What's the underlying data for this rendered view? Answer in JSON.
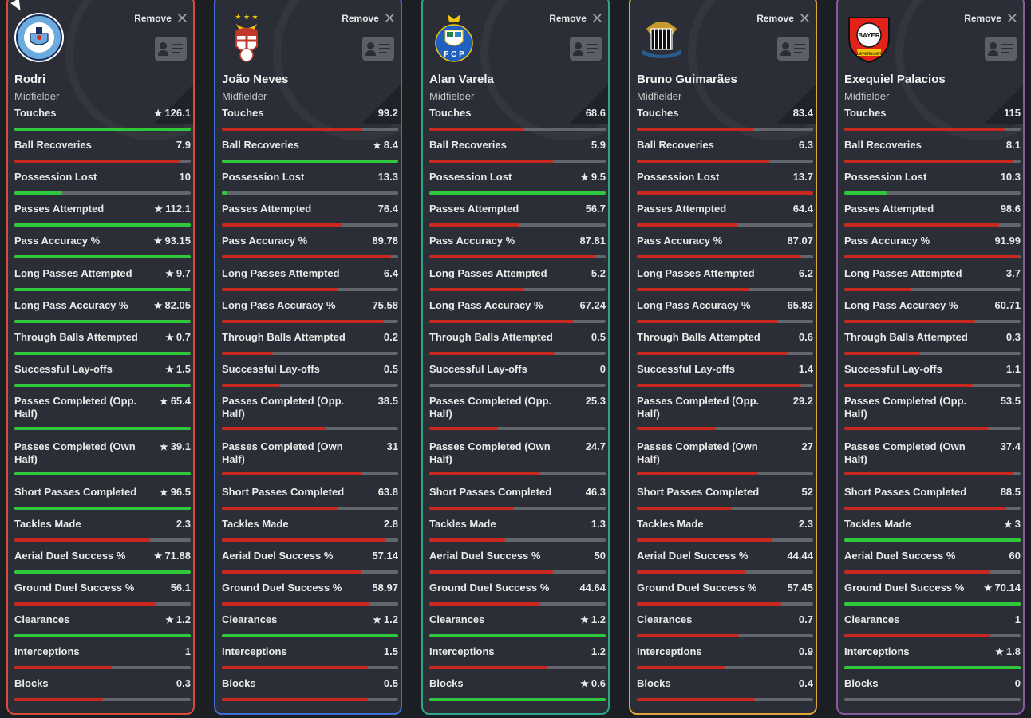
{
  "remove_label": "Remove",
  "colors": {
    "good": "#2ec83a",
    "bad": "#c8281e"
  },
  "players": [
    {
      "name": "Rodri",
      "position": "Midfielder",
      "border": "#d94a3a",
      "logo": "man-city-crest-icon",
      "stats": [
        {
          "label": "Touches",
          "value": "126.1",
          "star": true,
          "fill": 1.0,
          "good": true
        },
        {
          "label": "Ball Recoveries",
          "value": "7.9",
          "star": false,
          "fill": 0.94,
          "good": false
        },
        {
          "label": "Possession Lost",
          "value": "10",
          "star": false,
          "fill": 0.27,
          "good": true
        },
        {
          "label": "Passes Attempted",
          "value": "112.1",
          "star": true,
          "fill": 1.0,
          "good": true
        },
        {
          "label": "Pass Accuracy %",
          "value": "93.15",
          "star": true,
          "fill": 1.0,
          "good": true
        },
        {
          "label": "Long Passes Attempted",
          "value": "9.7",
          "star": true,
          "fill": 1.0,
          "good": true
        },
        {
          "label": "Long Pass Accuracy %",
          "value": "82.05",
          "star": true,
          "fill": 1.0,
          "good": true
        },
        {
          "label": "Through Balls Attempted",
          "value": "0.7",
          "star": true,
          "fill": 1.0,
          "good": true
        },
        {
          "label": "Successful Lay-offs",
          "value": "1.5",
          "star": true,
          "fill": 1.0,
          "good": true
        },
        {
          "label": "Passes Completed (Opp. Half)",
          "value": "65.4",
          "star": true,
          "fill": 1.0,
          "good": true
        },
        {
          "label": "Passes Completed (Own Half)",
          "value": "39.1",
          "star": true,
          "fill": 1.0,
          "good": true
        },
        {
          "label": "Short Passes Completed",
          "value": "96.5",
          "star": true,
          "fill": 1.0,
          "good": true
        },
        {
          "label": "Tackles Made",
          "value": "2.3",
          "star": false,
          "fill": 0.77,
          "good": false
        },
        {
          "label": "Aerial Duel Success %",
          "value": "71.88",
          "star": true,
          "fill": 1.0,
          "good": true
        },
        {
          "label": "Ground Duel Success %",
          "value": "56.1",
          "star": false,
          "fill": 0.8,
          "good": false
        },
        {
          "label": "Clearances",
          "value": "1.2",
          "star": true,
          "fill": 1.0,
          "good": true
        },
        {
          "label": "Interceptions",
          "value": "1",
          "star": false,
          "fill": 0.55,
          "good": false
        },
        {
          "label": "Blocks",
          "value": "0.3",
          "star": false,
          "fill": 0.5,
          "good": false
        }
      ]
    },
    {
      "name": "João Neves",
      "position": "Midfielder",
      "border": "#3f6fd6",
      "logo": "benfica-crest-icon",
      "stats": [
        {
          "label": "Touches",
          "value": "99.2",
          "star": false,
          "fill": 0.79,
          "good": false
        },
        {
          "label": "Ball Recoveries",
          "value": "8.4",
          "star": true,
          "fill": 1.0,
          "good": true
        },
        {
          "label": "Possession Lost",
          "value": "13.3",
          "star": false,
          "fill": 0.03,
          "good": true
        },
        {
          "label": "Passes Attempted",
          "value": "76.4",
          "star": false,
          "fill": 0.68,
          "good": false
        },
        {
          "label": "Pass Accuracy %",
          "value": "89.78",
          "star": false,
          "fill": 0.96,
          "good": false
        },
        {
          "label": "Long Passes Attempted",
          "value": "6.4",
          "star": false,
          "fill": 0.66,
          "good": false
        },
        {
          "label": "Long Pass Accuracy %",
          "value": "75.58",
          "star": false,
          "fill": 0.92,
          "good": false
        },
        {
          "label": "Through Balls Attempted",
          "value": "0.2",
          "star": false,
          "fill": 0.29,
          "good": false
        },
        {
          "label": "Successful Lay-offs",
          "value": "0.5",
          "star": false,
          "fill": 0.33,
          "good": false
        },
        {
          "label": "Passes Completed (Opp. Half)",
          "value": "38.5",
          "star": false,
          "fill": 0.59,
          "good": false
        },
        {
          "label": "Passes Completed (Own Half)",
          "value": "31",
          "star": false,
          "fill": 0.79,
          "good": false
        },
        {
          "label": "Short Passes Completed",
          "value": "63.8",
          "star": false,
          "fill": 0.66,
          "good": false
        },
        {
          "label": "Tackles Made",
          "value": "2.8",
          "star": false,
          "fill": 0.93,
          "good": false
        },
        {
          "label": "Aerial Duel Success %",
          "value": "57.14",
          "star": false,
          "fill": 0.79,
          "good": false
        },
        {
          "label": "Ground Duel Success %",
          "value": "58.97",
          "star": false,
          "fill": 0.84,
          "good": false
        },
        {
          "label": "Clearances",
          "value": "1.2",
          "star": true,
          "fill": 1.0,
          "good": true
        },
        {
          "label": "Interceptions",
          "value": "1.5",
          "star": false,
          "fill": 0.83,
          "good": false
        },
        {
          "label": "Blocks",
          "value": "0.5",
          "star": false,
          "fill": 0.83,
          "good": false
        }
      ]
    },
    {
      "name": "Alan Varela",
      "position": "Midfielder",
      "border": "#2ea58a",
      "logo": "porto-crest-icon",
      "stats": [
        {
          "label": "Touches",
          "value": "68.6",
          "star": false,
          "fill": 0.54,
          "good": false
        },
        {
          "label": "Ball Recoveries",
          "value": "5.9",
          "star": false,
          "fill": 0.7,
          "good": false
        },
        {
          "label": "Possession Lost",
          "value": "9.5",
          "star": true,
          "fill": 1.0,
          "good": true
        },
        {
          "label": "Passes Attempted",
          "value": "56.7",
          "star": false,
          "fill": 0.51,
          "good": false
        },
        {
          "label": "Pass Accuracy %",
          "value": "87.81",
          "star": false,
          "fill": 0.94,
          "good": false
        },
        {
          "label": "Long Passes Attempted",
          "value": "5.2",
          "star": false,
          "fill": 0.54,
          "good": false
        },
        {
          "label": "Long Pass Accuracy %",
          "value": "67.24",
          "star": false,
          "fill": 0.82,
          "good": false
        },
        {
          "label": "Through Balls Attempted",
          "value": "0.5",
          "star": false,
          "fill": 0.71,
          "good": false
        },
        {
          "label": "Successful Lay-offs",
          "value": "0",
          "star": false,
          "fill": 0.0,
          "good": false
        },
        {
          "label": "Passes Completed (Opp. Half)",
          "value": "25.3",
          "star": false,
          "fill": 0.39,
          "good": false
        },
        {
          "label": "Passes Completed (Own Half)",
          "value": "24.7",
          "star": false,
          "fill": 0.63,
          "good": false
        },
        {
          "label": "Short Passes Completed",
          "value": "46.3",
          "star": false,
          "fill": 0.48,
          "good": false
        },
        {
          "label": "Tackles Made",
          "value": "1.3",
          "star": false,
          "fill": 0.43,
          "good": false
        },
        {
          "label": "Aerial Duel Success %",
          "value": "50",
          "star": false,
          "fill": 0.7,
          "good": false
        },
        {
          "label": "Ground Duel Success %",
          "value": "44.64",
          "star": false,
          "fill": 0.63,
          "good": false
        },
        {
          "label": "Clearances",
          "value": "1.2",
          "star": true,
          "fill": 1.0,
          "good": true
        },
        {
          "label": "Interceptions",
          "value": "1.2",
          "star": false,
          "fill": 0.67,
          "good": false
        },
        {
          "label": "Blocks",
          "value": "0.6",
          "star": true,
          "fill": 1.0,
          "good": true
        }
      ]
    },
    {
      "name": "Bruno Guimarães",
      "position": "Midfielder",
      "border": "#e0a43a",
      "logo": "newcastle-crest-icon",
      "stats": [
        {
          "label": "Touches",
          "value": "83.4",
          "star": false,
          "fill": 0.66,
          "good": false
        },
        {
          "label": "Ball Recoveries",
          "value": "6.3",
          "star": false,
          "fill": 0.75,
          "good": false
        },
        {
          "label": "Possession Lost",
          "value": "13.7",
          "star": false,
          "fill": 1.0,
          "good": false
        },
        {
          "label": "Passes Attempted",
          "value": "64.4",
          "star": false,
          "fill": 0.57,
          "good": false
        },
        {
          "label": "Pass Accuracy %",
          "value": "87.07",
          "star": false,
          "fill": 0.93,
          "good": false
        },
        {
          "label": "Long Passes Attempted",
          "value": "6.2",
          "star": false,
          "fill": 0.64,
          "good": false
        },
        {
          "label": "Long Pass Accuracy %",
          "value": "65.83",
          "star": false,
          "fill": 0.8,
          "good": false
        },
        {
          "label": "Through Balls Attempted",
          "value": "0.6",
          "star": false,
          "fill": 0.86,
          "good": false
        },
        {
          "label": "Successful Lay-offs",
          "value": "1.4",
          "star": false,
          "fill": 0.93,
          "good": false
        },
        {
          "label": "Passes Completed (Opp. Half)",
          "value": "29.2",
          "star": false,
          "fill": 0.45,
          "good": false
        },
        {
          "label": "Passes Completed (Own Half)",
          "value": "27",
          "star": false,
          "fill": 0.69,
          "good": false
        },
        {
          "label": "Short Passes Completed",
          "value": "52",
          "star": false,
          "fill": 0.54,
          "good": false
        },
        {
          "label": "Tackles Made",
          "value": "2.3",
          "star": false,
          "fill": 0.77,
          "good": false
        },
        {
          "label": "Aerial Duel Success %",
          "value": "44.44",
          "star": false,
          "fill": 0.62,
          "good": false
        },
        {
          "label": "Ground Duel Success %",
          "value": "57.45",
          "star": false,
          "fill": 0.82,
          "good": false
        },
        {
          "label": "Clearances",
          "value": "0.7",
          "star": false,
          "fill": 0.58,
          "good": false
        },
        {
          "label": "Interceptions",
          "value": "0.9",
          "star": false,
          "fill": 0.5,
          "good": false
        },
        {
          "label": "Blocks",
          "value": "0.4",
          "star": false,
          "fill": 0.67,
          "good": false
        }
      ]
    },
    {
      "name": "Exequiel Palacios",
      "position": "Midfielder",
      "border": "#8a5aa0",
      "logo": "leverkusen-crest-icon",
      "stats": [
        {
          "label": "Touches",
          "value": "115",
          "star": false,
          "fill": 0.91,
          "good": false
        },
        {
          "label": "Ball Recoveries",
          "value": "8.1",
          "star": false,
          "fill": 0.96,
          "good": false
        },
        {
          "label": "Possession Lost",
          "value": "10.3",
          "star": false,
          "fill": 0.24,
          "good": true
        },
        {
          "label": "Passes Attempted",
          "value": "98.6",
          "star": false,
          "fill": 0.88,
          "good": false
        },
        {
          "label": "Pass Accuracy %",
          "value": "91.99",
          "star": false,
          "fill": 0.99,
          "good": false
        },
        {
          "label": "Long Passes Attempted",
          "value": "3.7",
          "star": false,
          "fill": 0.38,
          "good": false
        },
        {
          "label": "Long Pass Accuracy %",
          "value": "60.71",
          "star": false,
          "fill": 0.74,
          "good": false
        },
        {
          "label": "Through Balls Attempted",
          "value": "0.3",
          "star": false,
          "fill": 0.43,
          "good": false
        },
        {
          "label": "Successful Lay-offs",
          "value": "1.1",
          "star": false,
          "fill": 0.73,
          "good": false
        },
        {
          "label": "Passes Completed (Opp. Half)",
          "value": "53.5",
          "star": false,
          "fill": 0.82,
          "good": false
        },
        {
          "label": "Passes Completed (Own Half)",
          "value": "37.4",
          "star": false,
          "fill": 0.96,
          "good": false
        },
        {
          "label": "Short Passes Completed",
          "value": "88.5",
          "star": false,
          "fill": 0.92,
          "good": false
        },
        {
          "label": "Tackles Made",
          "value": "3",
          "star": true,
          "fill": 1.0,
          "good": true
        },
        {
          "label": "Aerial Duel Success %",
          "value": "60",
          "star": false,
          "fill": 0.83,
          "good": false
        },
        {
          "label": "Ground Duel Success %",
          "value": "70.14",
          "star": true,
          "fill": 1.0,
          "good": true
        },
        {
          "label": "Clearances",
          "value": "1",
          "star": false,
          "fill": 0.83,
          "good": false
        },
        {
          "label": "Interceptions",
          "value": "1.8",
          "star": true,
          "fill": 1.0,
          "good": true
        },
        {
          "label": "Blocks",
          "value": "0",
          "star": false,
          "fill": 0.0,
          "good": false
        }
      ]
    }
  ]
}
